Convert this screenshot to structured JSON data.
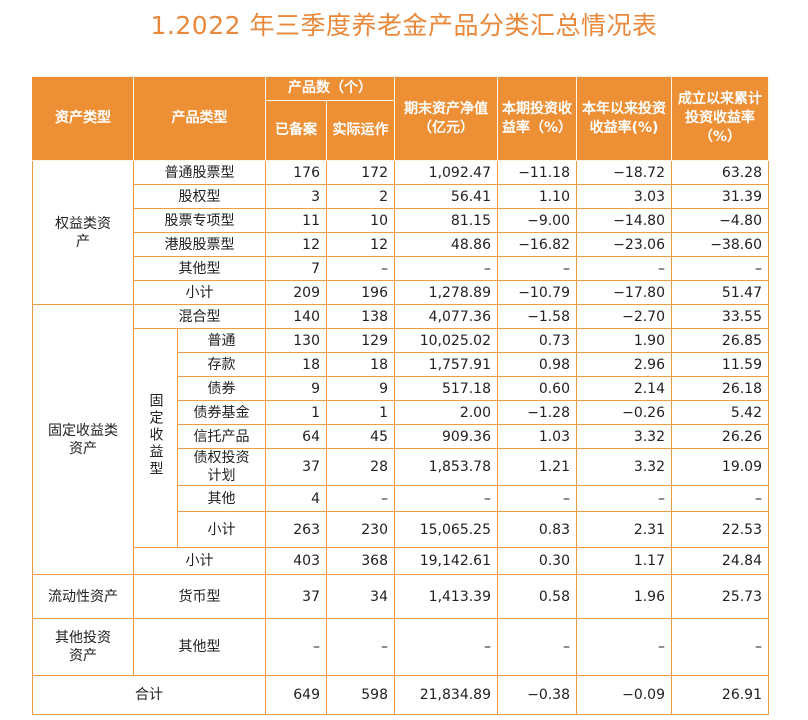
{
  "title": "1.2022 年三季度养老金产品分类汇总情况表",
  "header": {
    "asset_type": "资产类型",
    "product_type": "产品类型",
    "product_count": "产品数（个）",
    "filed": "已备案",
    "operating": "实际运作",
    "nav": "期末资产净值（亿元）",
    "period_return": "本期投资收益率（%）",
    "ytd_return": "本年以来投资收益率(%)",
    "cum_return": "成立以来累计投资收益率（%）"
  },
  "groups": {
    "equity": "权益类资产",
    "fixed": "固定收益类资产",
    "fixed_sub": "固定收益型",
    "liquidity": "流动性资产",
    "other": "其他投资资产"
  },
  "rows": [
    {
      "name": "普通股票型",
      "filed": "176",
      "op": "172",
      "nav": "1,092.47",
      "p": "−11.18",
      "y": "−18.72",
      "c": "63.28"
    },
    {
      "name": "股权型",
      "filed": "3",
      "op": "2",
      "nav": "56.41",
      "p": "1.10",
      "y": "3.03",
      "c": "31.39"
    },
    {
      "name": "股票专项型",
      "filed": "11",
      "op": "10",
      "nav": "81.15",
      "p": "−9.00",
      "y": "−14.80",
      "c": "−4.80"
    },
    {
      "name": "港股股票型",
      "filed": "12",
      "op": "12",
      "nav": "48.86",
      "p": "−16.82",
      "y": "−23.06",
      "c": "−38.60"
    },
    {
      "name": "其他型",
      "filed": "7",
      "op": "–",
      "nav": "–",
      "p": "–",
      "y": "–",
      "c": "–"
    },
    {
      "name": "小计",
      "filed": "209",
      "op": "196",
      "nav": "1,278.89",
      "p": "−10.79",
      "y": "−17.80",
      "c": "51.47"
    },
    {
      "name": "混合型",
      "filed": "140",
      "op": "138",
      "nav": "4,077.36",
      "p": "−1.58",
      "y": "−2.70",
      "c": "33.55"
    },
    {
      "name": "普通",
      "filed": "130",
      "op": "129",
      "nav": "10,025.02",
      "p": "0.73",
      "y": "1.90",
      "c": "26.85"
    },
    {
      "name": "存款",
      "filed": "18",
      "op": "18",
      "nav": "1,757.91",
      "p": "0.98",
      "y": "2.96",
      "c": "11.59"
    },
    {
      "name": "债券",
      "filed": "9",
      "op": "9",
      "nav": "517.18",
      "p": "0.60",
      "y": "2.14",
      "c": "26.18"
    },
    {
      "name": "债券基金",
      "filed": "1",
      "op": "1",
      "nav": "2.00",
      "p": "−1.28",
      "y": "−0.26",
      "c": "5.42"
    },
    {
      "name": "信托产品",
      "filed": "64",
      "op": "45",
      "nav": "909.36",
      "p": "1.03",
      "y": "3.32",
      "c": "26.26"
    },
    {
      "name": "债权投资计划",
      "filed": "37",
      "op": "28",
      "nav": "1,853.78",
      "p": "1.21",
      "y": "3.32",
      "c": "19.09"
    },
    {
      "name": "其他",
      "filed": "4",
      "op": "–",
      "nav": "–",
      "p": "–",
      "y": "–",
      "c": "–"
    },
    {
      "name": "小计",
      "filed": "263",
      "op": "230",
      "nav": "15,065.25",
      "p": "0.83",
      "y": "2.31",
      "c": "22.53"
    },
    {
      "name": "小计",
      "filed": "403",
      "op": "368",
      "nav": "19,142.61",
      "p": "0.30",
      "y": "1.17",
      "c": "24.84"
    },
    {
      "name": "货币型",
      "filed": "37",
      "op": "34",
      "nav": "1,413.39",
      "p": "0.58",
      "y": "1.96",
      "c": "25.73"
    },
    {
      "name": "其他型",
      "filed": "–",
      "op": "–",
      "nav": "–",
      "p": "–",
      "y": "–",
      "c": "–"
    },
    {
      "name": "合计",
      "filed": "649",
      "op": "598",
      "nav": "21,834.89",
      "p": "−0.38",
      "y": "−0.09",
      "c": "26.91"
    }
  ]
}
